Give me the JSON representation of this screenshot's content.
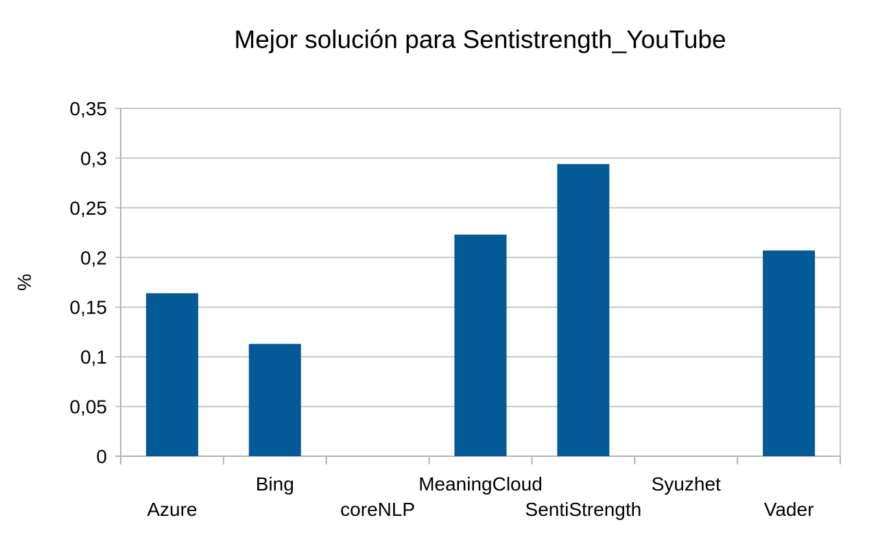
{
  "chart_data": {
    "type": "bar",
    "title": "Mejor solución para Sentistrength_YouTube",
    "xlabel": "",
    "ylabel": "%",
    "categories": [
      "Azure",
      "Bing",
      "coreNLP",
      "MeaningCloud",
      "SentiStrength",
      "Syuzhet",
      "Vader"
    ],
    "values": [
      0.164,
      0.113,
      0,
      0.223,
      0.294,
      0,
      0.207
    ],
    "ylim": [
      0,
      0.35
    ],
    "yticks": [
      0,
      0.05,
      0.1,
      0.15,
      0.2,
      0.25,
      0.3,
      0.35
    ],
    "ytick_labels": [
      "0",
      "0,05",
      "0,1",
      "0,15",
      "0,2",
      "0,25",
      "0,3",
      "0,35"
    ],
    "bar_color": "#045a97",
    "grid": true,
    "legend": "none"
  }
}
